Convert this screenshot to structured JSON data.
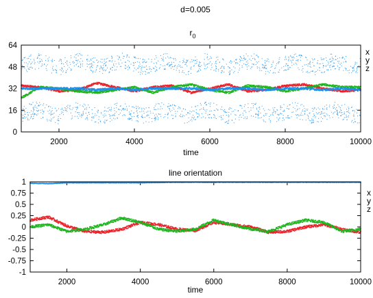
{
  "page": {
    "title": "d=0.005"
  },
  "colors": {
    "x": "#e8222a",
    "y": "#1fb41f",
    "z": "#1f8fe8",
    "axis": "#000000"
  },
  "legend": [
    "x",
    "y",
    "z"
  ],
  "chart_data": [
    {
      "type": "scatter",
      "title_main": "r",
      "title_sub": "0",
      "xlabel": "time",
      "ylabel": "",
      "xlim": [
        1000,
        10000
      ],
      "ylim": [
        0,
        64
      ],
      "x_ticks": [
        2000,
        4000,
        6000,
        8000,
        10000
      ],
      "x_tick_labels": [
        "2000",
        "4000",
        "6000",
        "8000",
        "10000"
      ],
      "y_ticks": [
        0,
        16,
        32,
        48,
        64
      ],
      "y_tick_labels": [
        "0",
        "16",
        "32",
        "48",
        "64"
      ],
      "grid": false,
      "legend_placement": "right",
      "series": [
        {
          "name": "x",
          "color": "#e8222a",
          "x": [
            1000,
            1500,
            2000,
            2500,
            3000,
            3500,
            4000,
            4500,
            5000,
            5500,
            6000,
            6500,
            7000,
            7500,
            8000,
            8500,
            9000,
            9500,
            10000
          ],
          "y": [
            34,
            33,
            30,
            31,
            36,
            33,
            30,
            33,
            34,
            29,
            32,
            35,
            30,
            31,
            34,
            35,
            32,
            30,
            31
          ]
        },
        {
          "name": "y",
          "color": "#1fb41f",
          "x": [
            1000,
            1500,
            2000,
            2500,
            3000,
            3500,
            4000,
            4500,
            5000,
            5500,
            6000,
            6500,
            7000,
            7500,
            8000,
            8500,
            9000,
            9500,
            10000
          ],
          "y": [
            25,
            33,
            32,
            30,
            29,
            31,
            33,
            29,
            33,
            35,
            31,
            29,
            34,
            33,
            30,
            32,
            35,
            33,
            33
          ]
        },
        {
          "name": "z",
          "color": "#1f8fe8",
          "x": [
            1000,
            1500,
            2000,
            2500,
            3000,
            3500,
            4000,
            4500,
            5000,
            5500,
            6000,
            6500,
            7000,
            7500,
            8000,
            8500,
            9000,
            9500,
            10000
          ],
          "y": [
            32,
            32,
            32,
            32,
            31,
            32,
            31,
            32,
            32,
            32,
            31,
            32,
            32,
            31,
            32,
            32,
            31,
            32,
            31
          ],
          "bands_y": [
            14,
            50
          ]
        }
      ]
    },
    {
      "type": "line",
      "title": "line orientation",
      "xlabel": "time",
      "ylabel": "",
      "xlim": [
        1000,
        10000
      ],
      "ylim": [
        -1,
        1
      ],
      "x_ticks": [
        2000,
        4000,
        6000,
        8000,
        10000
      ],
      "x_tick_labels": [
        "2000",
        "4000",
        "6000",
        "8000",
        "10000"
      ],
      "y_ticks": [
        1,
        0.75,
        0.5,
        0.25,
        0,
        -0.25,
        -0.5,
        -0.75,
        -1
      ],
      "y_tick_labels": [
        "1",
        "0.75",
        "0.5",
        "0.25",
        "0",
        "-0.25",
        "-0.5",
        "-0.75",
        "-1"
      ],
      "grid": false,
      "legend_placement": "right",
      "series": [
        {
          "name": "x",
          "color": "#e8222a",
          "x": [
            1000,
            1500,
            2000,
            2500,
            3000,
            3500,
            4000,
            4500,
            5000,
            5500,
            6000,
            6500,
            7000,
            7500,
            8000,
            8500,
            9000,
            9500,
            10000
          ],
          "y": [
            0.15,
            0.22,
            0.02,
            -0.1,
            -0.12,
            -0.05,
            0.1,
            0.05,
            -0.05,
            -0.08,
            0.1,
            0.05,
            0.0,
            -0.12,
            -0.1,
            0.0,
            0.05,
            -0.05,
            -0.12
          ]
        },
        {
          "name": "y",
          "color": "#1fb41f",
          "x": [
            1000,
            1500,
            2000,
            2500,
            3000,
            3500,
            4000,
            4500,
            5000,
            5500,
            6000,
            6500,
            7000,
            7500,
            8000,
            8500,
            9000,
            9500,
            10000
          ],
          "y": [
            0.0,
            0.05,
            -0.1,
            -0.05,
            0.05,
            0.2,
            0.1,
            -0.05,
            -0.1,
            -0.05,
            0.15,
            0.05,
            -0.05,
            -0.1,
            0.05,
            0.15,
            0.1,
            -0.1,
            -0.05
          ]
        },
        {
          "name": "z",
          "color": "#1f8fe8",
          "x": [
            1000,
            1500,
            2000,
            3000,
            4000,
            5000,
            6000,
            7000,
            8000,
            9000,
            10000
          ],
          "y": [
            0.97,
            0.96,
            0.98,
            0.98,
            0.98,
            0.99,
            0.99,
            0.99,
            0.99,
            0.99,
            0.99
          ]
        }
      ]
    }
  ]
}
